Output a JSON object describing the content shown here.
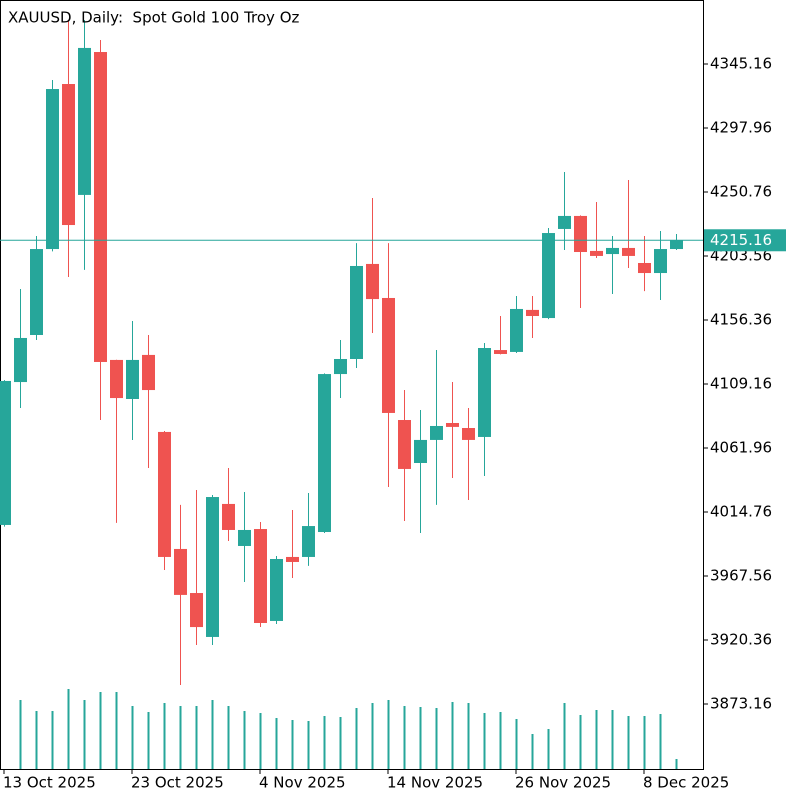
{
  "chart_data": {
    "type": "candlestick",
    "title": "XAUUSD, Daily:  Spot Gold 100 Troy Oz",
    "categories": [
      "13 Oct 2025",
      null,
      null,
      null,
      null,
      null,
      null,
      null,
      "23 Oct 2025",
      null,
      null,
      null,
      null,
      null,
      null,
      null,
      "4 Nov 2025",
      null,
      null,
      null,
      null,
      null,
      null,
      null,
      "14 Nov 2025",
      null,
      null,
      null,
      null,
      null,
      null,
      null,
      "26 Nov 2025",
      null,
      null,
      null,
      null,
      null,
      null,
      null,
      "8 Dec 2025",
      null,
      null
    ],
    "open": [
      4005.2,
      4110.6,
      4145.3,
      4208.7,
      4330.4,
      4248.6,
      4354.0,
      4126.9,
      4098.1,
      4130.6,
      4073.8,
      3987.5,
      3955.0,
      3922.6,
      4020.7,
      3989.7,
      4002.2,
      3934.4,
      3981.6,
      3981.6,
      4000.0,
      4116.5,
      4127.6,
      4197.7,
      4172.6,
      4082.6,
      4050.9,
      4067.9,
      4080.4,
      4076.7,
      4070.1,
      4134.2,
      4132.8,
      4163.8,
      4157.8,
      4223.5,
      4233.1,
      4207.3,
      4205.0,
      4209.5,
      4198.4,
      4191.0,
      4208.7
    ],
    "high": [
      4112.0,
      4179.2,
      4218.3,
      4333.4,
      4377.6,
      4377.6,
      4362.9,
      4127.0,
      4155.6,
      4145.3,
      4074.5,
      4020.0,
      4031.0,
      4027.3,
      4047.2,
      4029.5,
      4007.4,
      3982.3,
      4016.2,
      4028.8,
      4117.0,
      4141.6,
      4213.1,
      4246.3,
      4213.1,
      4104.7,
      4090.0,
      4134.2,
      4110.6,
      4091.5,
      4139.4,
      4159.3,
      4174.1,
      4174.1,
      4224.2,
      4265.5,
      4233.5,
      4243.4,
      4218.3,
      4259.6,
      4218.3,
      4222.0,
      4219.8
    ],
    "low": [
      4004.0,
      4091.5,
      4141.6,
      4207.0,
      4188.1,
      4193.3,
      4082.6,
      4006.7,
      4067.9,
      4047.2,
      3972.0,
      3887.2,
      3916.7,
      3916.7,
      3993.4,
      3963.1,
      3929.9,
      3932.2,
      3966.1,
      3975.0,
      3999.3,
      4098.8,
      4121.0,
      4146.8,
      4033.2,
      4008.1,
      3999.3,
      4020.0,
      4039.8,
      4023.6,
      4041.3,
      4131.0,
      4132.0,
      4143.1,
      4157.0,
      4208.0,
      4165.2,
      4202.1,
      4175.5,
      4194.7,
      4177.7,
      4171.1,
      4208.0
    ],
    "close": [
      4111.4,
      4143.1,
      4208.7,
      4326.7,
      4226.4,
      4357.0,
      4125.4,
      4098.8,
      4126.9,
      4104.7,
      3981.6,
      3953.6,
      3929.9,
      4025.8,
      4001.5,
      4001.5,
      3932.9,
      3980.1,
      3977.9,
      4004.4,
      4116.5,
      4127.6,
      4196.2,
      4171.8,
      4087.8,
      4046.5,
      4067.9,
      4078.2,
      4077.5,
      4067.9,
      4135.7,
      4131.3,
      4164.5,
      4159.3,
      4220.5,
      4233.1,
      4206.5,
      4203.6,
      4209.5,
      4203.6,
      4191.0,
      4208.7,
      4215.16
    ],
    "volume": [
      null,
      69,
      58,
      58,
      80,
      69,
      77,
      77,
      63,
      57,
      66,
      63,
      63,
      69,
      63,
      58,
      56,
      51,
      49,
      48,
      53,
      52,
      61,
      66,
      69,
      63,
      62,
      61,
      67,
      66,
      56,
      57,
      50,
      35,
      40,
      66,
      54,
      59,
      59,
      53,
      53,
      55,
      10
    ],
    "up_color": "#26a69a",
    "down_color": "#ef5350",
    "ylim": [
      3825.22,
      4392.36
    ],
    "yticks": [
      3873.16,
      3920.36,
      3967.56,
      4014.76,
      4061.96,
      4109.16,
      4156.36,
      4203.56,
      4250.76,
      4297.96,
      4345.16
    ],
    "last_price": 4215.16,
    "last_price_color": "#26a69a"
  }
}
